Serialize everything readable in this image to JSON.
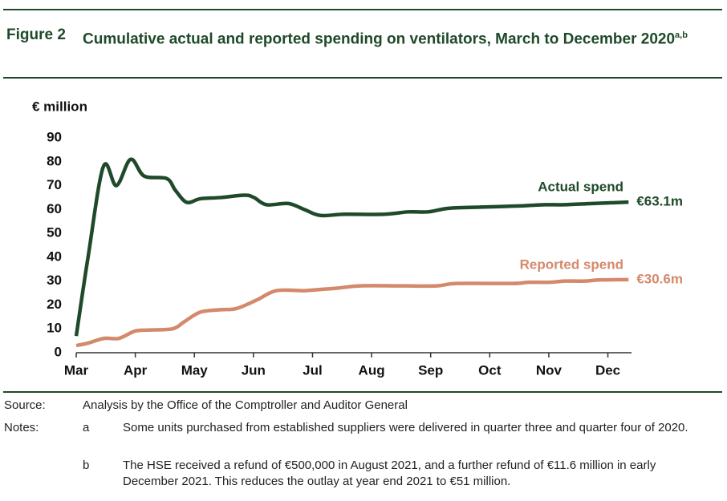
{
  "header": {
    "figure": "Figure 2",
    "title": "Cumulative actual and reported spending on ventilators, March to December 2020",
    "superscript": "a,b"
  },
  "chart_data": {
    "type": "line",
    "ylabel": "€ million",
    "xlim": [
      0,
      9.4
    ],
    "xticks": [
      {
        "value": 0,
        "label": "Mar"
      },
      {
        "value": 1,
        "label": "Apr"
      },
      {
        "value": 2,
        "label": "May"
      },
      {
        "value": 3,
        "label": "Jun"
      },
      {
        "value": 4,
        "label": "Jul"
      },
      {
        "value": 5,
        "label": "Aug"
      },
      {
        "value": 6,
        "label": "Sep"
      },
      {
        "value": 7,
        "label": "Oct"
      },
      {
        "value": 8,
        "label": "Nov"
      },
      {
        "value": 9,
        "label": "Dec"
      }
    ],
    "ylim": [
      0,
      90
    ],
    "yticks": [
      0,
      10,
      20,
      30,
      40,
      50,
      60,
      70,
      80,
      90
    ],
    "series": [
      {
        "name": "Actual spend",
        "color": "#1f4a2a",
        "x": [
          0,
          0.2,
          0.46,
          0.68,
          0.92,
          1.15,
          1.53,
          1.68,
          1.87,
          2.1,
          2.44,
          2.85,
          3.01,
          3.22,
          3.59,
          3.86,
          4.13,
          4.54,
          5.22,
          5.62,
          5.96,
          6.3,
          6.84,
          7.52,
          7.93,
          8.27,
          8.74,
          9.35
        ],
        "values": [
          7,
          40,
          78,
          70,
          81,
          74,
          73,
          68,
          63,
          64.5,
          65,
          66,
          65,
          62,
          62.5,
          60,
          57.5,
          58,
          58,
          59,
          59,
          60.5,
          61,
          61.5,
          62,
          62,
          62.5,
          63.1
        ],
        "value_labels": [
          null,
          null,
          null,
          null,
          null,
          null,
          null,
          null,
          null,
          null,
          null,
          null,
          null,
          null,
          null,
          null,
          null,
          null,
          null,
          null,
          null,
          null,
          null,
          null,
          null,
          null,
          null,
          "€63.1m"
        ]
      },
      {
        "name": "Reported spend",
        "color": "#d4896b",
        "x": [
          0,
          0.2,
          0.47,
          0.72,
          0.99,
          1.22,
          1.63,
          1.83,
          2.1,
          2.44,
          2.71,
          3.05,
          3.39,
          3.86,
          4.13,
          4.4,
          4.81,
          5.49,
          6.1,
          6.44,
          7.38,
          7.66,
          8.02,
          8.27,
          8.6,
          8.88,
          9.35
        ],
        "values": [
          3,
          4,
          6,
          6,
          9,
          9.5,
          10,
          13,
          17,
          18,
          18.5,
          22,
          26,
          26,
          26.5,
          27,
          28,
          28,
          28,
          29,
          29,
          29.5,
          29.5,
          30,
          30,
          30.5,
          30.6
        ],
        "value_labels": [
          null,
          null,
          null,
          null,
          null,
          null,
          null,
          null,
          null,
          null,
          null,
          null,
          null,
          null,
          null,
          null,
          null,
          null,
          null,
          null,
          null,
          null,
          null,
          null,
          null,
          null,
          "€30.6m"
        ]
      }
    ]
  },
  "footer": {
    "source_label": "Source:",
    "source": "Analysis by the Office of the Comptroller and Auditor General",
    "notes_label": "Notes:",
    "notes": [
      {
        "key": "a",
        "text": "Some units purchased from established suppliers were delivered in quarter three and quarter four of 2020."
      },
      {
        "key": "b",
        "text": "The HSE received a refund of €500,000 in August 2021, and a further refund of €11.6 million in early December 2021.  This reduces the outlay at year end 2021 to €51 million."
      }
    ]
  }
}
